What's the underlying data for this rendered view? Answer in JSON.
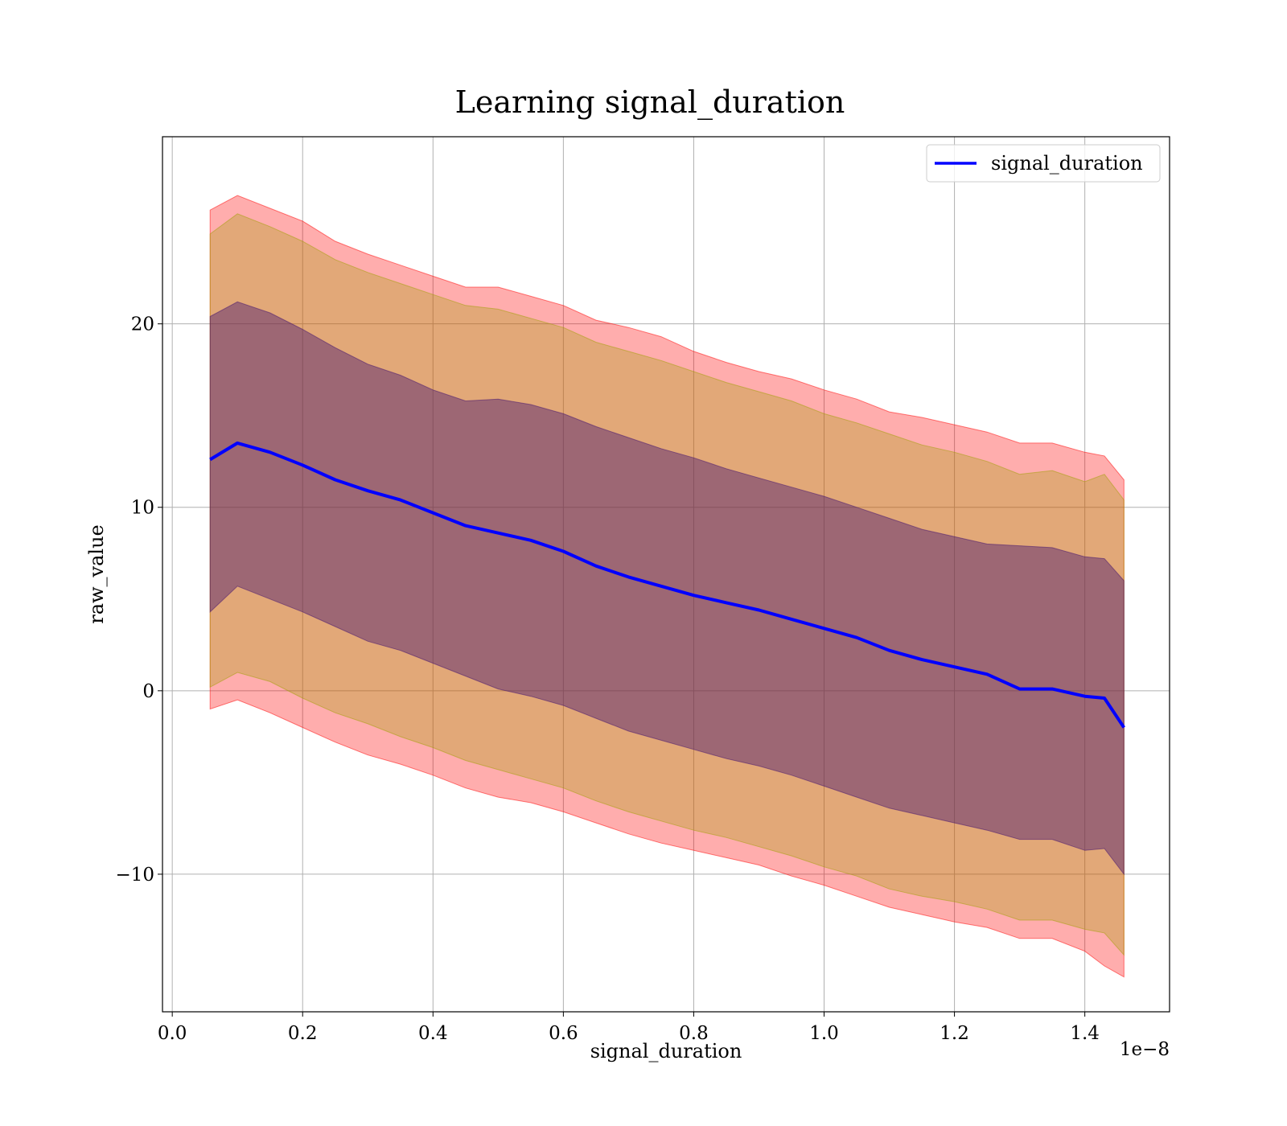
{
  "chart_data": {
    "type": "line",
    "title": "Learning signal_duration",
    "xlabel": "signal_duration",
    "ylabel": "raw_value",
    "x_offset_label": "1e−8",
    "xlim": [
      -0.015,
      1.53
    ],
    "ylim": [
      -17.5,
      30.2
    ],
    "xticks": [
      0.0,
      0.2,
      0.4,
      0.6,
      0.8,
      1.0,
      1.2,
      1.4
    ],
    "xtick_labels": [
      "0.0",
      "0.2",
      "0.4",
      "0.6",
      "0.8",
      "1.0",
      "1.2",
      "1.4"
    ],
    "yticks": [
      -10,
      0,
      10,
      20
    ],
    "ytick_labels": [
      "−10",
      "0",
      "10",
      "20"
    ],
    "grid": true,
    "legend": {
      "position": "top-right",
      "entries": [
        "signal_duration"
      ]
    },
    "colors": {
      "line": "#0000ff",
      "band_outer": "#ff0000",
      "band_middle": "#a0a000",
      "band_inner": "#3f0f6f",
      "grid": "#b0b0b0"
    },
    "x": [
      0.058,
      0.1,
      0.15,
      0.2,
      0.25,
      0.3,
      0.35,
      0.4,
      0.45,
      0.5,
      0.55,
      0.6,
      0.65,
      0.7,
      0.75,
      0.8,
      0.85,
      0.9,
      0.95,
      1.0,
      1.05,
      1.1,
      1.15,
      1.2,
      1.25,
      1.3,
      1.35,
      1.4,
      1.43,
      1.46
    ],
    "series": [
      {
        "name": "signal_duration",
        "values": [
          12.6,
          13.5,
          13.0,
          12.3,
          11.5,
          10.9,
          10.4,
          9.7,
          9.0,
          8.6,
          8.2,
          7.6,
          6.8,
          6.2,
          5.7,
          5.2,
          4.8,
          4.4,
          3.9,
          3.4,
          2.9,
          2.2,
          1.7,
          1.3,
          0.9,
          0.1,
          0.1,
          -0.3,
          -0.4,
          -2.0
        ]
      }
    ],
    "bands": [
      {
        "name": "outer",
        "upper": [
          26.2,
          27.0,
          26.3,
          25.6,
          24.5,
          23.8,
          23.2,
          22.6,
          22.0,
          22.0,
          21.5,
          21.0,
          20.2,
          19.8,
          19.3,
          18.5,
          17.9,
          17.4,
          17.0,
          16.4,
          15.9,
          15.2,
          14.9,
          14.5,
          14.1,
          13.5,
          13.5,
          13.0,
          12.8,
          11.5
        ],
        "lower": [
          -1.0,
          -0.5,
          -1.2,
          -2.0,
          -2.8,
          -3.5,
          -4.0,
          -4.6,
          -5.3,
          -5.8,
          -6.1,
          -6.6,
          -7.2,
          -7.8,
          -8.3,
          -8.7,
          -9.1,
          -9.5,
          -10.1,
          -10.6,
          -11.2,
          -11.8,
          -12.2,
          -12.6,
          -12.9,
          -13.5,
          -13.5,
          -14.2,
          -15.0,
          -15.6
        ]
      },
      {
        "name": "middle",
        "upper": [
          24.9,
          26.0,
          25.3,
          24.5,
          23.5,
          22.8,
          22.2,
          21.6,
          21.0,
          20.8,
          20.3,
          19.8,
          19.0,
          18.5,
          18.0,
          17.4,
          16.8,
          16.3,
          15.8,
          15.1,
          14.6,
          14.0,
          13.4,
          13.0,
          12.5,
          11.8,
          12.0,
          11.4,
          11.8,
          10.4
        ],
        "lower": [
          0.2,
          1.0,
          0.5,
          -0.4,
          -1.2,
          -1.8,
          -2.5,
          -3.1,
          -3.8,
          -4.3,
          -4.8,
          -5.3,
          -6.0,
          -6.6,
          -7.1,
          -7.6,
          -8.0,
          -8.5,
          -9.0,
          -9.6,
          -10.1,
          -10.8,
          -11.2,
          -11.5,
          -11.9,
          -12.5,
          -12.5,
          -13.0,
          -13.2,
          -14.4
        ]
      },
      {
        "name": "inner",
        "upper": [
          20.4,
          21.2,
          20.6,
          19.7,
          18.7,
          17.8,
          17.2,
          16.4,
          15.8,
          15.9,
          15.6,
          15.1,
          14.4,
          13.8,
          13.2,
          12.7,
          12.1,
          11.6,
          11.1,
          10.6,
          10.0,
          9.4,
          8.8,
          8.4,
          8.0,
          7.9,
          7.8,
          7.3,
          7.2,
          6.0
        ],
        "lower": [
          4.3,
          5.7,
          5.0,
          4.3,
          3.5,
          2.7,
          2.2,
          1.5,
          0.8,
          0.1,
          -0.3,
          -0.8,
          -1.5,
          -2.2,
          -2.7,
          -3.2,
          -3.7,
          -4.1,
          -4.6,
          -5.2,
          -5.8,
          -6.4,
          -6.8,
          -7.2,
          -7.6,
          -8.1,
          -8.1,
          -8.7,
          -8.6,
          -10.0
        ]
      }
    ]
  }
}
